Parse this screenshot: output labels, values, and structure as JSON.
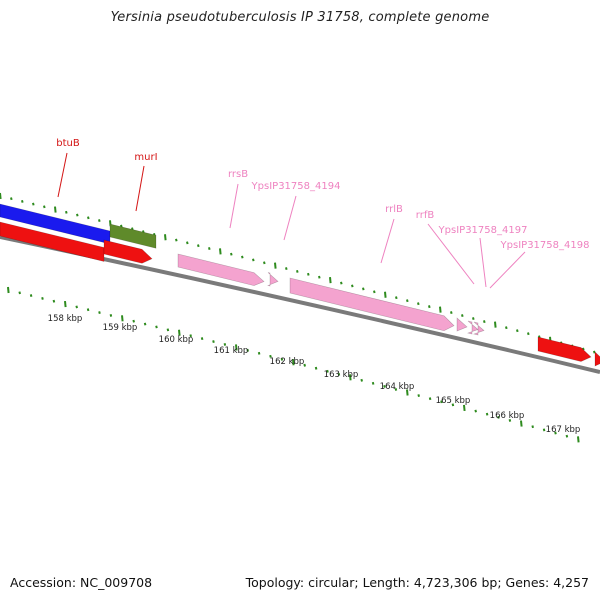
{
  "title": "Yersinia pseudotuberculosis IP 31758, complete genome",
  "footer": {
    "accession": "Accession: NC_009708",
    "summary": "Topology: circular; Length: 4,723,306 bp; Genes: 4,257"
  },
  "colors": {
    "ticks": "#2e8b1e",
    "backbone": "#7a7a7a",
    "gene_blue": "#1a1aee",
    "gene_olive": "#5f8a2a",
    "gene_red": "#ee1111",
    "gene_pink": "#f4a3cf",
    "label_red": "#d41616",
    "label_pink": "#ee82c0"
  },
  "scale": {
    "ticks": [
      {
        "label": "158 kbp"
      },
      {
        "label": "159 kbp"
      },
      {
        "label": "160 kbp"
      },
      {
        "label": "161 kbp"
      },
      {
        "label": "162 kbp"
      },
      {
        "label": "163 kbp"
      },
      {
        "label": "164 kbp"
      },
      {
        "label": "165 kbp"
      },
      {
        "label": "166 kbp"
      },
      {
        "label": "167 kbp"
      }
    ]
  },
  "features": [
    {
      "name": "btuB",
      "type": "gene",
      "label_color": "red"
    },
    {
      "name": "murI",
      "type": "gene",
      "label_color": "red"
    },
    {
      "name": "rrsB",
      "type": "rRNA",
      "label_color": "pink"
    },
    {
      "name": "YpsIP31758_4194",
      "type": "tRNA",
      "label_color": "pink"
    },
    {
      "name": "rrlB",
      "type": "rRNA",
      "label_color": "pink"
    },
    {
      "name": "rrfB",
      "type": "rRNA",
      "label_color": "pink"
    },
    {
      "name": "YpsIP31758_4197",
      "type": "tRNA",
      "label_color": "pink"
    },
    {
      "name": "YpsIP31758_4198",
      "type": "tRNA",
      "label_color": "pink"
    }
  ]
}
